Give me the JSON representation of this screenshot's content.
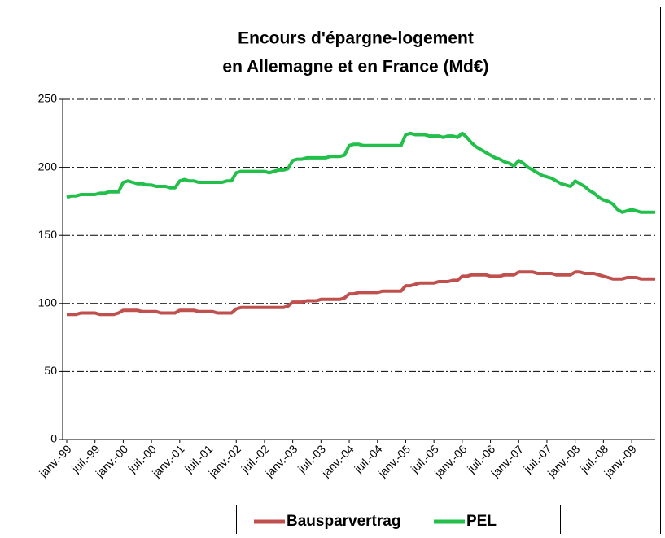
{
  "chart_data": {
    "type": "line",
    "title": "Encours d'épargne-logement",
    "subtitle": "en Allemagne et en France (Md€)",
    "categories": [
      "janv.-99",
      null,
      null,
      null,
      null,
      null,
      "juil.-99",
      null,
      null,
      null,
      null,
      null,
      "janv.-00",
      null,
      null,
      null,
      null,
      null,
      "juil.-00",
      null,
      null,
      null,
      null,
      null,
      "janv.-01",
      null,
      null,
      null,
      null,
      null,
      "juil.-01",
      null,
      null,
      null,
      null,
      null,
      "janv.-02",
      null,
      null,
      null,
      null,
      null,
      "juil.-02",
      null,
      null,
      null,
      null,
      null,
      "janv.-03",
      null,
      null,
      null,
      null,
      null,
      "juil.-03",
      null,
      null,
      null,
      null,
      null,
      "janv.-04",
      null,
      null,
      null,
      null,
      null,
      "juil.-04",
      null,
      null,
      null,
      null,
      null,
      "janv.-05",
      null,
      null,
      null,
      null,
      null,
      "juil.-05",
      null,
      null,
      null,
      null,
      null,
      "janv.-06",
      null,
      null,
      null,
      null,
      null,
      "juil.-06",
      null,
      null,
      null,
      null,
      null,
      "janv.-07",
      null,
      null,
      null,
      null,
      null,
      "juil.-07",
      null,
      null,
      null,
      null,
      null,
      "janv.-08",
      null,
      null,
      null,
      null,
      null,
      "juil.-08",
      null,
      null,
      null,
      null,
      null,
      "janv.-09",
      null,
      null,
      null,
      null,
      null
    ],
    "series": [
      {
        "name": "Bausparvertrag",
        "color": "#c0504d",
        "values": [
          92,
          92,
          92,
          93,
          93,
          93,
          93,
          92,
          92,
          92,
          92,
          93,
          95,
          95,
          95,
          95,
          94,
          94,
          94,
          94,
          93,
          93,
          93,
          93,
          95,
          95,
          95,
          95,
          94,
          94,
          94,
          94,
          93,
          93,
          93,
          93,
          96,
          97,
          97,
          97,
          97,
          97,
          97,
          97,
          97,
          97,
          97,
          98,
          101,
          101,
          101,
          102,
          102,
          102,
          103,
          103,
          103,
          103,
          103,
          104,
          107,
          107,
          108,
          108,
          108,
          108,
          108,
          109,
          109,
          109,
          109,
          109,
          113,
          113,
          114,
          115,
          115,
          115,
          115,
          116,
          116,
          116,
          117,
          117,
          120,
          120,
          121,
          121,
          121,
          121,
          120,
          120,
          120,
          121,
          121,
          121,
          123,
          123,
          123,
          123,
          122,
          122,
          122,
          122,
          121,
          121,
          121,
          121,
          123,
          123,
          122,
          122,
          122,
          121,
          120,
          119,
          118,
          118,
          118,
          119,
          119,
          119,
          118,
          118,
          118,
          118
        ]
      },
      {
        "name": "PEL",
        "color": "#22bf4a",
        "values": [
          178,
          179,
          179,
          180,
          180,
          180,
          180,
          181,
          181,
          182,
          182,
          182,
          189,
          190,
          189,
          188,
          188,
          187,
          187,
          186,
          186,
          186,
          185,
          185,
          190,
          191,
          190,
          190,
          189,
          189,
          189,
          189,
          189,
          189,
          190,
          190,
          196,
          197,
          197,
          197,
          197,
          197,
          197,
          196,
          197,
          198,
          198,
          199,
          205,
          206,
          206,
          207,
          207,
          207,
          207,
          207,
          208,
          208,
          208,
          209,
          216,
          217,
          217,
          216,
          216,
          216,
          216,
          216,
          216,
          216,
          216,
          216,
          224,
          225,
          224,
          224,
          224,
          223,
          223,
          223,
          222,
          223,
          223,
          222,
          225,
          222,
          218,
          215,
          213,
          211,
          209,
          207,
          206,
          204,
          203,
          201,
          205,
          203,
          200,
          198,
          196,
          194,
          193,
          192,
          190,
          188,
          187,
          186,
          190,
          188,
          186,
          183,
          181,
          178,
          176,
          175,
          173,
          169,
          167,
          168,
          169,
          168,
          167,
          167,
          167,
          167
        ]
      }
    ],
    "ylim": [
      0,
      250
    ],
    "yticks": [
      0,
      50,
      100,
      150,
      200,
      250
    ],
    "grid": true,
    "legend": "bottom"
  }
}
